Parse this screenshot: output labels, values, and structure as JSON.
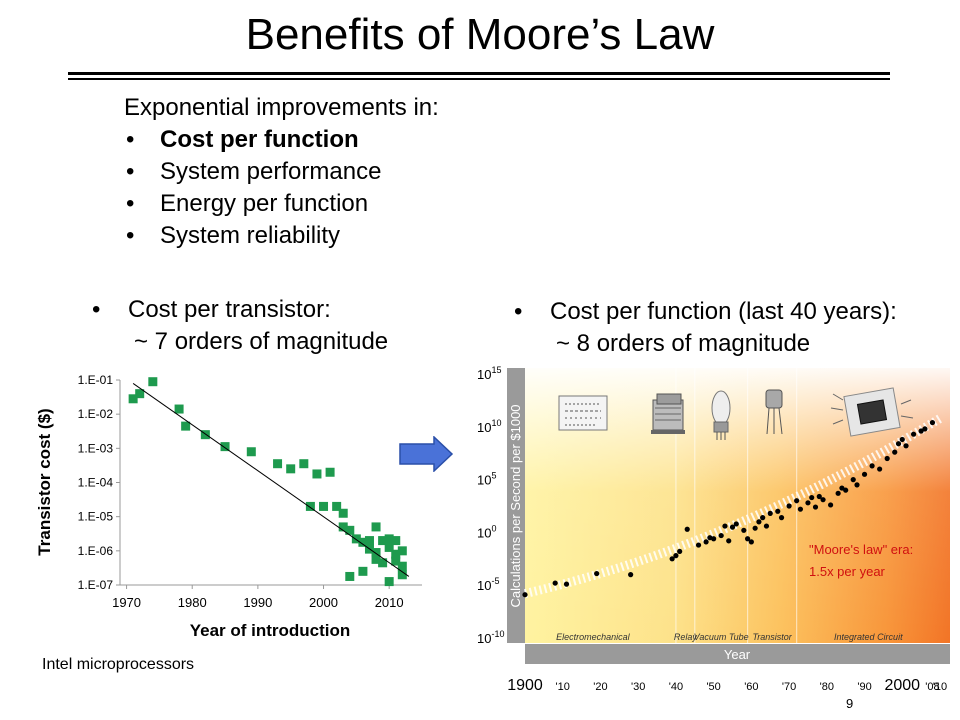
{
  "slide": {
    "title": "Benefits of Moore’s Law",
    "page_number": "9",
    "intro": {
      "heading": "Exponential improvements in:",
      "bullets": [
        {
          "text": "Cost per function",
          "bold": true
        },
        {
          "text": "System performance",
          "bold": false
        },
        {
          "text": "Energy per function",
          "bold": false
        },
        {
          "text": "System reliability",
          "bold": false
        }
      ]
    },
    "left_block": {
      "bullet": "Cost per transistor:",
      "sub": "~ 7 orders of magnitude"
    },
    "right_block": {
      "bullet": "Cost per function (last 40 years):",
      "sub": "~ 8 orders of magnitude"
    },
    "left_caption": "Intel microprocessors",
    "bullet_glyph": "•",
    "arrow_color": "#4a72d8"
  },
  "chart_data": [
    {
      "type": "scatter",
      "title": "",
      "xlabel": "Year of introduction",
      "ylabel": "Transistor  cost ($)",
      "xlim": [
        1969,
        2015
      ],
      "x_ticks": [
        1970,
        1980,
        1990,
        2000,
        2010
      ],
      "y_ticks": [
        "1.E-01",
        "1.E-02",
        "1.E-03",
        "1.E-04",
        "1.E-05",
        "1.E-06",
        "1.E-07"
      ],
      "ylim_log10": [
        -7,
        -1
      ],
      "marker_color": "#1e9a4e",
      "points": [
        [
          1971,
          -1.55
        ],
        [
          1972,
          -1.4
        ],
        [
          1974,
          -1.05
        ],
        [
          1978,
          -1.85
        ],
        [
          1979,
          -2.35
        ],
        [
          1982,
          -2.6
        ],
        [
          1985,
          -2.95
        ],
        [
          1989,
          -3.1
        ],
        [
          1993,
          -3.45
        ],
        [
          1995,
          -3.6
        ],
        [
          1997,
          -3.45
        ],
        [
          1999,
          -3.75
        ],
        [
          1998,
          -4.7
        ],
        [
          2000,
          -4.7
        ],
        [
          2002,
          -4.7
        ],
        [
          2001,
          -3.7
        ],
        [
          2003,
          -4.9
        ],
        [
          2003,
          -5.3
        ],
        [
          2004,
          -5.4
        ],
        [
          2005,
          -5.65
        ],
        [
          2006,
          -5.75
        ],
        [
          2004,
          -6.75
        ],
        [
          2006,
          -6.6
        ],
        [
          2007,
          -5.7
        ],
        [
          2007,
          -5.95
        ],
        [
          2008,
          -6.05
        ],
        [
          2008,
          -6.25
        ],
        [
          2008,
          -5.3
        ],
        [
          2009,
          -5.7
        ],
        [
          2009,
          -6.35
        ],
        [
          2010,
          -5.65
        ],
        [
          2010,
          -5.9
        ],
        [
          2011,
          -6.1
        ],
        [
          2011,
          -5.7
        ],
        [
          2012,
          -6.0
        ],
        [
          2012,
          -6.45
        ],
        [
          2010,
          -6.9
        ],
        [
          2012,
          -6.7
        ],
        [
          2011,
          -6.3
        ]
      ],
      "trend_line": [
        [
          1971,
          -1.1
        ],
        [
          2013,
          -6.75
        ]
      ]
    },
    {
      "type": "scatter",
      "title": "",
      "xlabel": "Year",
      "ylabel": "Calculations per Second per $1000",
      "x_ticks": [
        "1900",
        "'10",
        "'20",
        "'30",
        "'40",
        "'50",
        "'60",
        "'70",
        "'80",
        "'90",
        "2000",
        "'08",
        "'10"
      ],
      "y_ticks": [
        "10-10",
        "10-5",
        "100",
        "105",
        "1010",
        "1015"
      ],
      "ylim_log10": [
        -10,
        15
      ],
      "eras": [
        "Electromechanical",
        "Relay",
        "Vacuum Tube",
        "Transistor",
        "Integrated Circuit"
      ],
      "annotation": {
        "line1": "\"Moore's law\" era:",
        "line2": "1.5x per year",
        "color": "#d01010"
      },
      "points": [
        [
          1900,
          -5.9
        ],
        [
          1908,
          -4.8
        ],
        [
          1911,
          -4.9
        ],
        [
          1919,
          -3.9
        ],
        [
          1928,
          -4.0
        ],
        [
          1939,
          -2.5
        ],
        [
          1940,
          -2.2
        ],
        [
          1941,
          -1.8
        ],
        [
          1943,
          0.3
        ],
        [
          1946,
          -1.2
        ],
        [
          1948,
          -0.9
        ],
        [
          1949,
          -0.5
        ],
        [
          1950,
          -0.6
        ],
        [
          1952,
          -0.3
        ],
        [
          1953,
          0.6
        ],
        [
          1954,
          -0.8
        ],
        [
          1955,
          0.5
        ],
        [
          1956,
          0.8
        ],
        [
          1958,
          0.2
        ],
        [
          1959,
          -0.6
        ],
        [
          1960,
          -0.9
        ],
        [
          1961,
          0.4
        ],
        [
          1962,
          1.0
        ],
        [
          1963,
          1.4
        ],
        [
          1964,
          0.6
        ],
        [
          1965,
          1.8
        ],
        [
          1967,
          2.0
        ],
        [
          1968,
          1.4
        ],
        [
          1970,
          2.5
        ],
        [
          1972,
          3.0
        ],
        [
          1973,
          2.2
        ],
        [
          1975,
          2.8
        ],
        [
          1976,
          3.3
        ],
        [
          1977,
          2.4
        ],
        [
          1978,
          3.4
        ],
        [
          1979,
          3.1
        ],
        [
          1981,
          2.6
        ],
        [
          1983,
          3.7
        ],
        [
          1984,
          4.2
        ],
        [
          1985,
          4.0
        ],
        [
          1987,
          5.0
        ],
        [
          1988,
          4.5
        ],
        [
          1990,
          5.5
        ],
        [
          1992,
          6.3
        ],
        [
          1994,
          6.0
        ],
        [
          1996,
          7.0
        ],
        [
          1998,
          7.6
        ],
        [
          1999,
          8.4
        ],
        [
          2000,
          8.8
        ],
        [
          2001,
          8.2
        ],
        [
          2003,
          9.3
        ],
        [
          2005,
          9.6
        ],
        [
          2006,
          9.8
        ],
        [
          2008,
          10.4
        ]
      ],
      "trend": [
        [
          1900,
          -5.8
        ],
        [
          2010,
          10.8
        ]
      ]
    }
  ]
}
